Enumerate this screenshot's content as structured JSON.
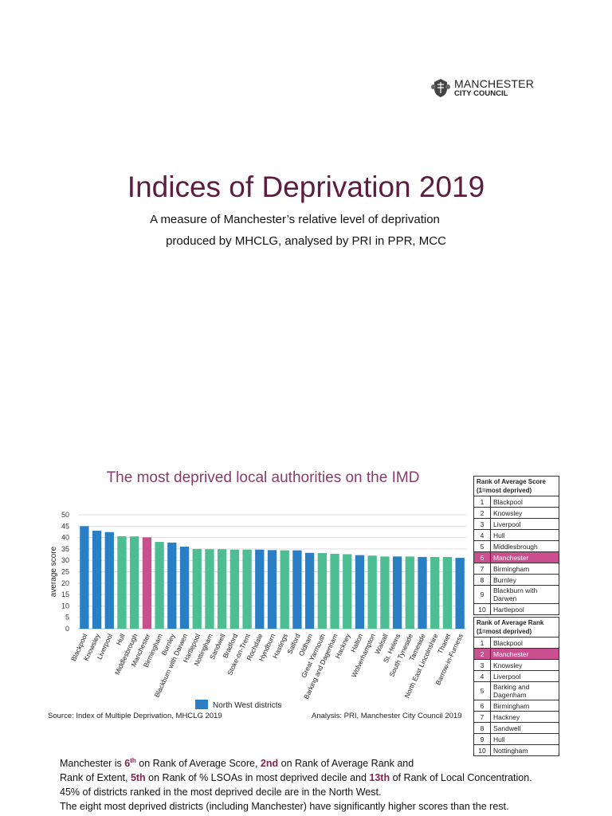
{
  "logo": {
    "line1": "MANCHESTER",
    "line2": "CITY COUNCIL"
  },
  "title": "Indices of Deprivation 2019",
  "subtitle_lines": [
    "A measure of Manchester’s relative level of deprivation",
    "produced by MHCLG, analysed by PRI in PPR, MCC"
  ],
  "colors": {
    "north_west": "#2a7fc4",
    "other": "#4dbd94",
    "manchester": "#c94f8f",
    "title": "#5e1c3e"
  },
  "chart_data": {
    "type": "bar",
    "title": "The most deprived local authorities on the IMD",
    "xlabel": "",
    "ylabel": "average score",
    "ylim": [
      0,
      50
    ],
    "yticks": [
      0,
      5,
      10,
      15,
      20,
      25,
      30,
      35,
      40,
      45,
      50
    ],
    "grid": true,
    "legend": {
      "position": "bottom",
      "entries": [
        {
          "name": "North West districts",
          "color": "#2a7fc4"
        }
      ]
    },
    "categories": [
      "Blackpool",
      "Knowsley",
      "Liverpool",
      "Hull",
      "Middlesbrough",
      "Manchester",
      "Birmingham",
      "Burnley",
      "Blackburn with Darwen",
      "Hartlepool",
      "Nottingham",
      "Sandwell",
      "Bradford",
      "Stoke-on-Trent",
      "Rochdale",
      "Hyndburn",
      "Hastings",
      "Salford",
      "Oldham",
      "Great Yarmouth",
      "Barking and Dagenham",
      "Hackney",
      "Halton",
      "Wolverhampton",
      "Walsall",
      "St. Helens",
      "South Tyneside",
      "Tameside",
      "North East Lincolnshire",
      "Thanet",
      "Barrow-in-Furness"
    ],
    "values": [
      45.0,
      43.0,
      42.4,
      40.6,
      40.5,
      40.1,
      38.1,
      37.8,
      36.0,
      35.0,
      34.9,
      34.9,
      34.7,
      34.7,
      34.7,
      34.5,
      34.4,
      34.4,
      33.3,
      33.2,
      32.9,
      32.7,
      32.3,
      32.1,
      31.7,
      31.7,
      31.7,
      31.5,
      31.5,
      31.5,
      31.1
    ],
    "groups": [
      "nw",
      "nw",
      "nw",
      "other",
      "other",
      "manchester",
      "other",
      "nw",
      "nw",
      "other",
      "other",
      "other",
      "other",
      "other",
      "nw",
      "nw",
      "other",
      "nw",
      "nw",
      "other",
      "other",
      "other",
      "nw",
      "other",
      "other",
      "nw",
      "other",
      "nw",
      "other",
      "other",
      "nw"
    ]
  },
  "source": "Source: Index of Multiple Deprivation, MHCLG 2019",
  "analysis": "Analysis: PRI, Manchester City Council 2019",
  "table_avg_score": {
    "header": "Rank of Average Score (1=most deprived)",
    "rows": [
      [
        "1",
        "Blackpool"
      ],
      [
        "2",
        "Knowsley"
      ],
      [
        "3",
        "Liverpool"
      ],
      [
        "4",
        "Hull"
      ],
      [
        "5",
        "Middlesbrough"
      ],
      [
        "6",
        "Manchester"
      ],
      [
        "7",
        "Birmingham"
      ],
      [
        "8",
        "Burnley"
      ],
      [
        "9",
        "Blackburn with Darwen"
      ],
      [
        "10",
        "Hartlepool"
      ]
    ],
    "highlight": 5
  },
  "table_avg_rank": {
    "header": "Rank of Average Rank (1=most deprived)",
    "rows": [
      [
        "1",
        "Blackpool"
      ],
      [
        "2",
        "Manchester"
      ],
      [
        "3",
        "Knowsley"
      ],
      [
        "4",
        "Liverpool"
      ],
      [
        "5",
        "Barking and Dagenham"
      ],
      [
        "6",
        "Birmingham"
      ],
      [
        "7",
        "Hackney"
      ],
      [
        "8",
        "Sandwell"
      ],
      [
        "9",
        "Hull"
      ],
      [
        "10",
        "Nottingham"
      ]
    ],
    "highlight": 1
  },
  "summary": {
    "p1a": "Manchester is ",
    "r1": "6",
    "r1sup": "th",
    "p1b": " on Rank of Average Score, ",
    "r2": "2nd",
    "p1c": " on Rank of Average Rank and",
    "p2a": "Rank of Extent, ",
    "r3": "5th",
    "p2b": " on Rank of % LSOAs in most deprived decile and ",
    "r4": "13th",
    "p2c": " of Rank of Local Concentration.",
    "line3": "45% of districts ranked in the most deprived decile are in the North West.",
    "line4": "The eight most deprived districts (including Manchester) have significantly higher scores than the rest."
  }
}
